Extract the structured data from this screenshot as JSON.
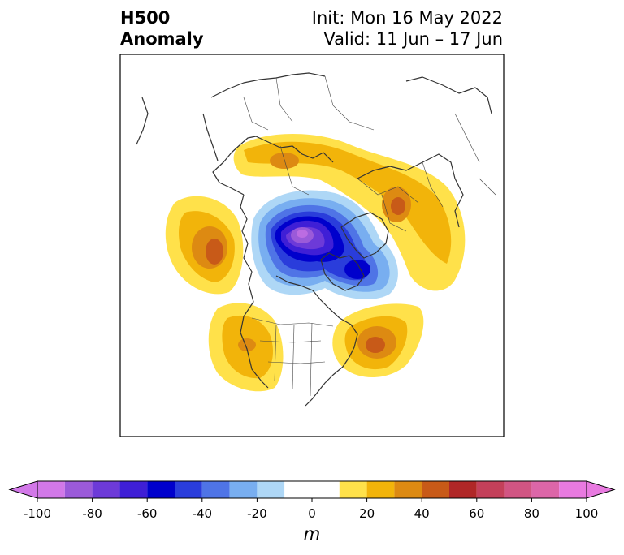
{
  "title": {
    "left_line1": "H500",
    "left_line2": "Anomaly",
    "right_line1": "Init: Mon 16 May 2022",
    "right_line2": "Valid: 11 Jun – 17 Jun"
  },
  "colorbar": {
    "unit": "m",
    "ticks": [
      -100,
      -80,
      -60,
      -40,
      -20,
      0,
      20,
      40,
      60,
      80,
      100
    ],
    "levels": [
      -100,
      -90,
      -80,
      -70,
      -60,
      -50,
      -40,
      -30,
      -20,
      -10,
      10,
      20,
      30,
      40,
      50,
      60,
      70,
      80,
      90,
      100
    ],
    "colors": [
      "#d278e8",
      "#9b5ad9",
      "#6d3ad8",
      "#3f1fd6",
      "#0000cc",
      "#2a3ddb",
      "#4f74e6",
      "#78aef0",
      "#aed7f6",
      "#ffffff",
      "#ffe14a",
      "#f2b40a",
      "#dd8a12",
      "#c85a18",
      "#b02727",
      "#c4405a",
      "#d15583",
      "#dc66a8",
      "#e87ae0"
    ],
    "extend": "both"
  },
  "map": {
    "projection": "polar stereographic, North Pole",
    "anomaly_centers": [
      {
        "region": "Beaufort Sea / Arctic Ocean",
        "sign": "negative",
        "peak_m": -90
      },
      {
        "region": "Canadian Arctic Archipelago",
        "sign": "negative",
        "peak_m": -60
      },
      {
        "region": "Western Russia",
        "sign": "positive",
        "peak_m": 40
      },
      {
        "region": "Northern Siberia",
        "sign": "positive",
        "peak_m": 30
      },
      {
        "region": "Gulf of Alaska / NE Pacific",
        "sign": "positive",
        "peak_m": 50
      },
      {
        "region": "Western United States",
        "sign": "positive",
        "peak_m": 30
      },
      {
        "region": "NW Atlantic / New England",
        "sign": "positive",
        "peak_m": 40
      }
    ]
  }
}
